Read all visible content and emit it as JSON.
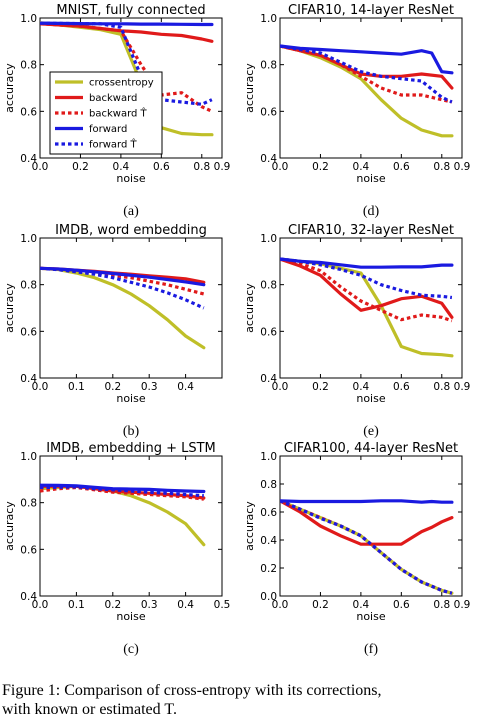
{
  "caption": {
    "line1": "Figure 1: Comparison of cross-entropy with its corrections,",
    "line2": "with known or estimated T."
  },
  "colors": {
    "crossentropy": "#bfbf28",
    "backward": "#e01a1a",
    "forward": "#1a1ae0"
  },
  "legend": {
    "entries": [
      {
        "label": "crossentropy",
        "series": "crossentropy",
        "style": "solid"
      },
      {
        "label": "backward",
        "series": "backward",
        "style": "solid"
      },
      {
        "label": "backward T̂",
        "series": "backward",
        "style": "dotted"
      },
      {
        "label": "forward",
        "series": "forward",
        "style": "solid"
      },
      {
        "label": "forward T̂",
        "series": "forward",
        "style": "dotted"
      }
    ]
  },
  "chart_data": [
    {
      "type": "line",
      "sublabel": "(a)",
      "title": "MNIST, fully connected",
      "xlabel": "noise",
      "ylabel": "accuracy",
      "xlim": [
        0.0,
        0.9
      ],
      "ylim": [
        0.4,
        1.0
      ],
      "xticks": [
        "0.0",
        "0.2",
        "0.4",
        "0.6",
        "0.8",
        "0.9"
      ],
      "yticks": [
        "0.4",
        "0.6",
        "0.8",
        "1.0"
      ],
      "series": [
        {
          "name": "crossentropy",
          "style": "solid",
          "x": [
            0,
            0.1,
            0.2,
            0.3,
            0.4,
            0.5,
            0.6,
            0.7,
            0.8,
            0.85
          ],
          "y": [
            0.98,
            0.97,
            0.96,
            0.95,
            0.93,
            0.72,
            0.53,
            0.505,
            0.5,
            0.5
          ]
        },
        {
          "name": "backward",
          "style": "solid",
          "x": [
            0,
            0.1,
            0.2,
            0.3,
            0.4,
            0.5,
            0.6,
            0.7,
            0.8,
            0.85
          ],
          "y": [
            0.975,
            0.97,
            0.965,
            0.955,
            0.945,
            0.94,
            0.93,
            0.925,
            0.91,
            0.9
          ]
        },
        {
          "name": "backward T̂",
          "style": "dotted",
          "x": [
            0,
            0.1,
            0.2,
            0.3,
            0.4,
            0.5,
            0.6,
            0.7,
            0.8,
            0.85
          ],
          "y": [
            0.975,
            0.97,
            0.965,
            0.955,
            0.945,
            0.8,
            0.67,
            0.68,
            0.62,
            0.6
          ]
        },
        {
          "name": "forward",
          "style": "solid",
          "x": [
            0,
            0.1,
            0.2,
            0.3,
            0.4,
            0.5,
            0.6,
            0.7,
            0.8,
            0.85
          ],
          "y": [
            0.978,
            0.977,
            0.976,
            0.975,
            0.975,
            0.974,
            0.974,
            0.973,
            0.972,
            0.972
          ]
        },
        {
          "name": "forward T̂",
          "style": "dotted",
          "x": [
            0,
            0.1,
            0.2,
            0.3,
            0.4,
            0.5,
            0.6,
            0.7,
            0.8,
            0.85
          ],
          "y": [
            0.978,
            0.977,
            0.976,
            0.975,
            0.96,
            0.75,
            0.65,
            0.64,
            0.63,
            0.65
          ]
        }
      ]
    },
    {
      "type": "line",
      "sublabel": "(d)",
      "title": "CIFAR10, 14-layer ResNet",
      "xlabel": "noise",
      "ylabel": "accuracy",
      "xlim": [
        0.0,
        0.9
      ],
      "ylim": [
        0.4,
        1.0
      ],
      "xticks": [
        "0.0",
        "0.2",
        "0.4",
        "0.6",
        "0.8",
        "0.9"
      ],
      "yticks": [
        "0.4",
        "0.6",
        "0.8",
        "1.0"
      ],
      "series": [
        {
          "name": "crossentropy",
          "style": "solid",
          "x": [
            0,
            0.1,
            0.2,
            0.3,
            0.4,
            0.5,
            0.6,
            0.7,
            0.8,
            0.85
          ],
          "y": [
            0.88,
            0.86,
            0.83,
            0.79,
            0.74,
            0.65,
            0.57,
            0.52,
            0.495,
            0.495
          ]
        },
        {
          "name": "backward",
          "style": "solid",
          "x": [
            0,
            0.1,
            0.2,
            0.3,
            0.4,
            0.5,
            0.6,
            0.7,
            0.8,
            0.85
          ],
          "y": [
            0.88,
            0.86,
            0.84,
            0.8,
            0.76,
            0.75,
            0.75,
            0.76,
            0.75,
            0.7
          ]
        },
        {
          "name": "backward T̂",
          "style": "dotted",
          "x": [
            0,
            0.1,
            0.2,
            0.3,
            0.4,
            0.5,
            0.6,
            0.7,
            0.8,
            0.85
          ],
          "y": [
            0.88,
            0.86,
            0.84,
            0.8,
            0.75,
            0.7,
            0.67,
            0.67,
            0.65,
            0.64
          ]
        },
        {
          "name": "forward",
          "style": "solid",
          "x": [
            0,
            0.1,
            0.2,
            0.3,
            0.4,
            0.5,
            0.6,
            0.7,
            0.75,
            0.8,
            0.85
          ],
          "y": [
            0.88,
            0.87,
            0.865,
            0.86,
            0.855,
            0.85,
            0.845,
            0.86,
            0.85,
            0.77,
            0.765
          ]
        },
        {
          "name": "forward T̂",
          "style": "dotted",
          "x": [
            0,
            0.1,
            0.2,
            0.3,
            0.4,
            0.5,
            0.6,
            0.7,
            0.8,
            0.85
          ],
          "y": [
            0.88,
            0.865,
            0.85,
            0.81,
            0.77,
            0.75,
            0.74,
            0.73,
            0.66,
            0.64
          ]
        }
      ]
    },
    {
      "type": "line",
      "sublabel": "(b)",
      "title": "IMDB, word embedding",
      "xlabel": "noise",
      "ylabel": "accuracy",
      "xlim": [
        0.0,
        0.5
      ],
      "ylim": [
        0.4,
        1.0
      ],
      "xticks": [
        "0.0",
        "0.1",
        "0.2",
        "0.3",
        "0.4"
      ],
      "yticks": [
        "0.4",
        "0.6",
        "0.8",
        "1.0"
      ],
      "series": [
        {
          "name": "crossentropy",
          "style": "solid",
          "x": [
            0,
            0.05,
            0.1,
            0.15,
            0.2,
            0.25,
            0.3,
            0.35,
            0.4,
            0.45
          ],
          "y": [
            0.87,
            0.865,
            0.85,
            0.83,
            0.8,
            0.76,
            0.71,
            0.65,
            0.58,
            0.53
          ]
        },
        {
          "name": "backward",
          "style": "solid",
          "x": [
            0,
            0.05,
            0.1,
            0.15,
            0.2,
            0.25,
            0.3,
            0.35,
            0.4,
            0.45
          ],
          "y": [
            0.87,
            0.867,
            0.862,
            0.857,
            0.85,
            0.845,
            0.838,
            0.832,
            0.825,
            0.81
          ]
        },
        {
          "name": "backward T̂",
          "style": "dotted",
          "x": [
            0,
            0.05,
            0.1,
            0.15,
            0.2,
            0.25,
            0.3,
            0.35,
            0.4,
            0.45
          ],
          "y": [
            0.87,
            0.866,
            0.858,
            0.85,
            0.84,
            0.83,
            0.815,
            0.8,
            0.78,
            0.76
          ]
        },
        {
          "name": "forward",
          "style": "solid",
          "x": [
            0,
            0.05,
            0.1,
            0.15,
            0.2,
            0.25,
            0.3,
            0.35,
            0.4,
            0.45
          ],
          "y": [
            0.87,
            0.867,
            0.862,
            0.855,
            0.848,
            0.84,
            0.832,
            0.822,
            0.812,
            0.8
          ]
        },
        {
          "name": "forward T̂",
          "style": "dotted",
          "x": [
            0,
            0.05,
            0.1,
            0.15,
            0.2,
            0.25,
            0.3,
            0.35,
            0.4,
            0.45
          ],
          "y": [
            0.87,
            0.864,
            0.855,
            0.845,
            0.83,
            0.81,
            0.79,
            0.765,
            0.735,
            0.7
          ]
        }
      ]
    },
    {
      "type": "line",
      "sublabel": "(e)",
      "title": "CIFAR10, 32-layer ResNet",
      "xlabel": "noise",
      "ylabel": "accuracy",
      "xlim": [
        0.0,
        0.9
      ],
      "ylim": [
        0.4,
        1.0
      ],
      "xticks": [
        "0.0",
        "0.2",
        "0.4",
        "0.6",
        "0.8",
        "0.9"
      ],
      "yticks": [
        "0.4",
        "0.6",
        "0.8",
        "1.0"
      ],
      "series": [
        {
          "name": "crossentropy",
          "style": "solid",
          "x": [
            0,
            0.1,
            0.2,
            0.3,
            0.4,
            0.5,
            0.6,
            0.7,
            0.8,
            0.85
          ],
          "y": [
            0.91,
            0.9,
            0.89,
            0.87,
            0.85,
            0.71,
            0.535,
            0.505,
            0.5,
            0.495
          ]
        },
        {
          "name": "backward",
          "style": "solid",
          "x": [
            0,
            0.1,
            0.2,
            0.3,
            0.4,
            0.5,
            0.6,
            0.7,
            0.8,
            0.85
          ],
          "y": [
            0.91,
            0.88,
            0.84,
            0.76,
            0.69,
            0.71,
            0.74,
            0.75,
            0.72,
            0.66
          ]
        },
        {
          "name": "backward T̂",
          "style": "dotted",
          "x": [
            0,
            0.1,
            0.2,
            0.3,
            0.4,
            0.5,
            0.6,
            0.7,
            0.8,
            0.85
          ],
          "y": [
            0.91,
            0.89,
            0.86,
            0.79,
            0.73,
            0.69,
            0.65,
            0.67,
            0.66,
            0.645
          ]
        },
        {
          "name": "forward",
          "style": "solid",
          "x": [
            0,
            0.1,
            0.2,
            0.3,
            0.4,
            0.5,
            0.6,
            0.7,
            0.8,
            0.85
          ],
          "y": [
            0.91,
            0.9,
            0.895,
            0.885,
            0.875,
            0.875,
            0.876,
            0.876,
            0.884,
            0.884
          ]
        },
        {
          "name": "forward T̂",
          "style": "dotted",
          "x": [
            0,
            0.1,
            0.2,
            0.3,
            0.4,
            0.5,
            0.6,
            0.7,
            0.8,
            0.85
          ],
          "y": [
            0.91,
            0.9,
            0.885,
            0.865,
            0.84,
            0.8,
            0.775,
            0.755,
            0.75,
            0.745
          ]
        }
      ]
    },
    {
      "type": "line",
      "sublabel": "(c)",
      "title": "IMDB, embedding + LSTM",
      "xlabel": "noise",
      "ylabel": "accuracy",
      "xlim": [
        0.0,
        0.5
      ],
      "ylim": [
        0.4,
        1.0
      ],
      "xticks": [
        "0.0",
        "0.1",
        "0.2",
        "0.3",
        "0.4",
        "0.5"
      ],
      "yticks": [
        "0.4",
        "0.6",
        "0.8",
        "1.0"
      ],
      "series": [
        {
          "name": "crossentropy",
          "style": "solid",
          "x": [
            0,
            0.05,
            0.1,
            0.15,
            0.2,
            0.25,
            0.3,
            0.35,
            0.4,
            0.45
          ],
          "y": [
            0.86,
            0.865,
            0.87,
            0.86,
            0.85,
            0.83,
            0.8,
            0.76,
            0.71,
            0.62
          ]
        },
        {
          "name": "backward",
          "style": "solid",
          "x": [
            0,
            0.05,
            0.1,
            0.15,
            0.2,
            0.25,
            0.3,
            0.35,
            0.4,
            0.45
          ],
          "y": [
            0.87,
            0.87,
            0.87,
            0.86,
            0.85,
            0.845,
            0.84,
            0.835,
            0.83,
            0.82
          ]
        },
        {
          "name": "backward T̂",
          "style": "dotted",
          "x": [
            0,
            0.05,
            0.1,
            0.15,
            0.2,
            0.25,
            0.3,
            0.35,
            0.4,
            0.45
          ],
          "y": [
            0.85,
            0.86,
            0.865,
            0.855,
            0.845,
            0.84,
            0.835,
            0.83,
            0.825,
            0.815
          ]
        },
        {
          "name": "forward",
          "style": "solid",
          "x": [
            0,
            0.05,
            0.1,
            0.15,
            0.2,
            0.25,
            0.3,
            0.35,
            0.4,
            0.45
          ],
          "y": [
            0.875,
            0.874,
            0.872,
            0.866,
            0.86,
            0.858,
            0.857,
            0.853,
            0.85,
            0.848
          ]
        },
        {
          "name": "forward T̂",
          "style": "dotted",
          "x": [
            0,
            0.05,
            0.1,
            0.15,
            0.2,
            0.25,
            0.3,
            0.35,
            0.4,
            0.45
          ],
          "y": [
            0.865,
            0.866,
            0.868,
            0.86,
            0.855,
            0.85,
            0.845,
            0.84,
            0.835,
            0.83
          ]
        }
      ]
    },
    {
      "type": "line",
      "sublabel": "(f)",
      "title": "CIFAR100, 44-layer ResNet",
      "xlabel": "noise",
      "ylabel": "accuracy",
      "xlim": [
        0.0,
        0.9
      ],
      "ylim": [
        0.0,
        1.0
      ],
      "xticks": [
        "0.0",
        "0.2",
        "0.4",
        "0.6",
        "0.8",
        "0.9"
      ],
      "yticks": [
        "0.0",
        "0.2",
        "0.4",
        "0.6",
        "0.8",
        "1.0"
      ],
      "series": [
        {
          "name": "crossentropy",
          "style": "solid",
          "x": [
            0,
            0.1,
            0.2,
            0.3,
            0.4,
            0.5,
            0.6,
            0.7,
            0.8,
            0.85
          ],
          "y": [
            0.68,
            0.62,
            0.56,
            0.5,
            0.43,
            0.31,
            0.19,
            0.1,
            0.04,
            0.02
          ]
        },
        {
          "name": "backward",
          "style": "solid",
          "x": [
            0,
            0.1,
            0.2,
            0.3,
            0.4,
            0.5,
            0.6,
            0.7,
            0.75,
            0.8,
            0.85
          ],
          "y": [
            0.68,
            0.6,
            0.5,
            0.43,
            0.37,
            0.37,
            0.37,
            0.46,
            0.49,
            0.53,
            0.56
          ]
        },
        {
          "name": "backward T̂",
          "style": "dotted",
          "x": [
            0,
            0.1,
            0.2,
            0.3,
            0.4,
            0.5,
            0.6,
            0.7,
            0.8,
            0.85
          ],
          "y": [
            0.68,
            0.62,
            0.56,
            0.5,
            0.43,
            0.31,
            0.19,
            0.1,
            0.04,
            0.02
          ]
        },
        {
          "name": "forward",
          "style": "solid",
          "x": [
            0,
            0.1,
            0.2,
            0.3,
            0.4,
            0.5,
            0.6,
            0.7,
            0.75,
            0.8,
            0.85
          ],
          "y": [
            0.68,
            0.675,
            0.675,
            0.675,
            0.675,
            0.68,
            0.68,
            0.67,
            0.675,
            0.67,
            0.67
          ]
        },
        {
          "name": "forward T̂",
          "style": "dotted",
          "x": [
            0,
            0.1,
            0.2,
            0.3,
            0.4,
            0.5,
            0.6,
            0.7,
            0.8,
            0.85
          ],
          "y": [
            0.68,
            0.62,
            0.555,
            0.5,
            0.43,
            0.31,
            0.19,
            0.1,
            0.04,
            0.02
          ]
        }
      ]
    }
  ]
}
